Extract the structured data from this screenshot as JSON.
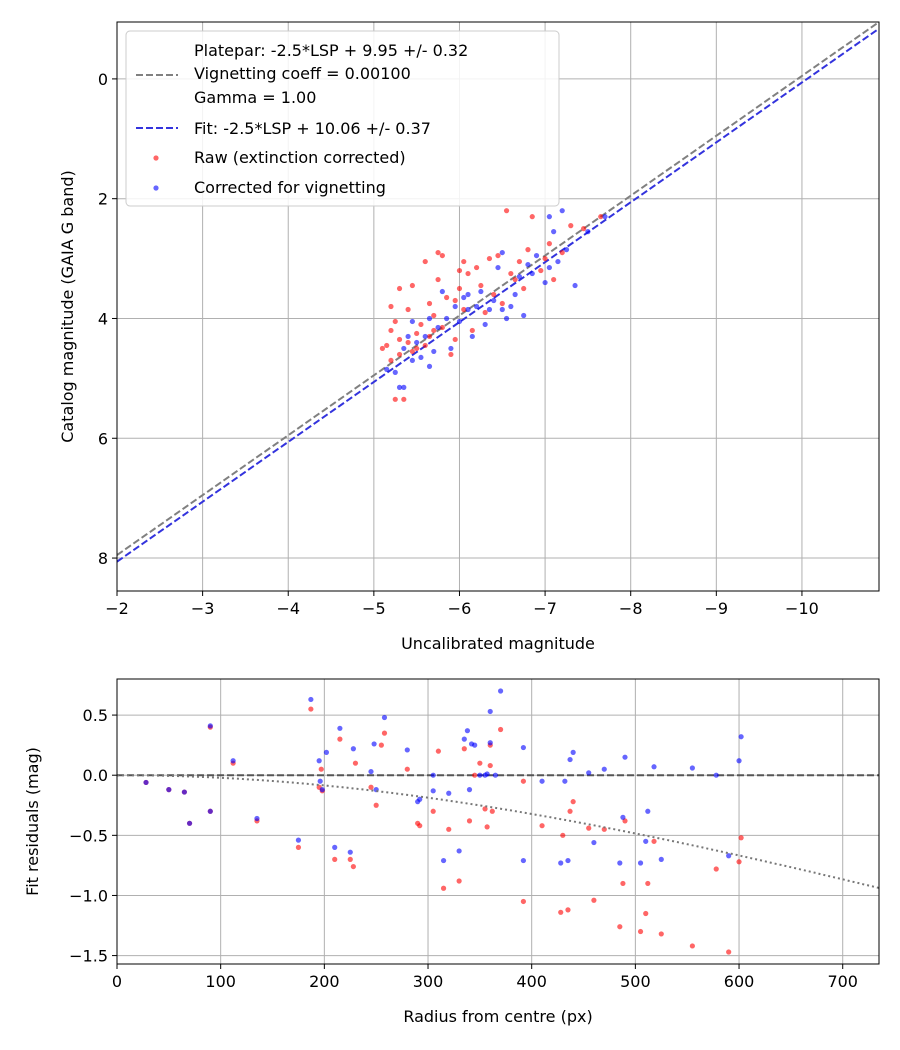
{
  "colors": {
    "raw": "#ff0000",
    "corrected": "#0000ff",
    "platepar_line": "#808080",
    "fit_line": "#3333dd",
    "grid": "#b0b0b0"
  },
  "chart_data": [
    {
      "type": "scatter",
      "xlabel": "Uncalibrated magnitude",
      "ylabel": "Catalog magnitude (GAIA G band)",
      "xlim": [
        -2,
        -10.9
      ],
      "ylim": [
        8.55,
        -0.95
      ],
      "x_inverted": true,
      "y_inverted": true,
      "grid": true,
      "legend_position": "top-left",
      "xticks": [
        -2,
        -3,
        -4,
        -5,
        -6,
        -7,
        -8,
        -9,
        -10
      ],
      "xtick_labels": [
        "−2",
        "−3",
        "−4",
        "−5",
        "−6",
        "−7",
        "−8",
        "−9",
        "−10"
      ],
      "yticks": [
        0,
        2,
        4,
        6,
        8
      ],
      "ytick_labels": [
        "0",
        "2",
        "4",
        "6",
        "8"
      ],
      "legend": [
        {
          "kind": "line",
          "style": "dashed",
          "series": "platepar",
          "lines": [
            "Platepar: -2.5*LSP + 9.95 +/- 0.32",
            "Vignetting coeff = 0.00100",
            "Gamma = 1.00"
          ]
        },
        {
          "kind": "line",
          "style": "dashed",
          "series": "fit",
          "lines": [
            "Fit: -2.5*LSP + 10.06 +/- 0.37"
          ]
        },
        {
          "kind": "marker",
          "series": "raw",
          "lines": [
            "Raw (extinction corrected)"
          ]
        },
        {
          "kind": "marker",
          "series": "corrected",
          "lines": [
            "Corrected for vignetting"
          ]
        }
      ],
      "lines": [
        {
          "name": "platepar",
          "points": [
            [
              -2,
              7.95
            ],
            [
              -10.9,
              -0.95
            ]
          ]
        },
        {
          "name": "fit",
          "points": [
            [
              -2,
              8.06
            ],
            [
              -10.9,
              -0.84
            ]
          ]
        }
      ],
      "series": [
        {
          "name": "raw",
          "points": [
            [
              -5.1,
              4.5
            ],
            [
              -5.15,
              4.45
            ],
            [
              -5.2,
              4.2
            ],
            [
              -5.2,
              3.8
            ],
            [
              -5.25,
              4.05
            ],
            [
              -5.3,
              4.35
            ],
            [
              -5.3,
              4.6
            ],
            [
              -5.25,
              5.35
            ],
            [
              -5.35,
              5.35
            ],
            [
              -5.3,
              3.5
            ],
            [
              -5.4,
              4.4
            ],
            [
              -5.4,
              3.85
            ],
            [
              -5.45,
              3.45
            ],
            [
              -5.5,
              4.25
            ],
            [
              -5.55,
              4.1
            ],
            [
              -5.5,
              4.5
            ],
            [
              -5.6,
              4.45
            ],
            [
              -5.6,
              3.05
            ],
            [
              -5.65,
              3.75
            ],
            [
              -5.7,
              4.2
            ],
            [
              -5.7,
              3.95
            ],
            [
              -5.75,
              3.35
            ],
            [
              -5.8,
              4.15
            ],
            [
              -5.8,
              2.95
            ],
            [
              -5.85,
              3.65
            ],
            [
              -5.9,
              4.6
            ],
            [
              -5.95,
              3.7
            ],
            [
              -6.0,
              3.2
            ],
            [
              -6.0,
              3.5
            ],
            [
              -6.05,
              3.85
            ],
            [
              -6.1,
              3.25
            ],
            [
              -6.15,
              4.2
            ],
            [
              -6.2,
              3.15
            ],
            [
              -6.25,
              3.45
            ],
            [
              -6.3,
              3.9
            ],
            [
              -6.35,
              3.0
            ],
            [
              -6.4,
              3.6
            ],
            [
              -6.45,
              2.95
            ],
            [
              -6.5,
              3.75
            ],
            [
              -6.55,
              2.2
            ],
            [
              -6.6,
              3.25
            ],
            [
              -6.65,
              3.35
            ],
            [
              -6.7,
              3.05
            ],
            [
              -6.75,
              3.5
            ],
            [
              -6.8,
              2.85
            ],
            [
              -6.85,
              2.3
            ],
            [
              -6.95,
              3.2
            ],
            [
              -7.0,
              3.0
            ],
            [
              -7.05,
              2.75
            ],
            [
              -7.1,
              3.35
            ],
            [
              -7.2,
              2.9
            ],
            [
              -7.3,
              2.45
            ],
            [
              -7.45,
              2.5
            ],
            [
              -7.65,
              2.3
            ],
            [
              -5.75,
              2.9
            ],
            [
              -6.05,
              3.05
            ],
            [
              -5.65,
              4.3
            ],
            [
              -5.95,
              4.35
            ],
            [
              -5.45,
              4.55
            ],
            [
              -5.2,
              4.7
            ]
          ]
        },
        {
          "name": "corrected",
          "points": [
            [
              -5.15,
              4.85
            ],
            [
              -5.3,
              5.15
            ],
            [
              -5.35,
              5.15
            ],
            [
              -5.35,
              4.5
            ],
            [
              -5.4,
              4.3
            ],
            [
              -5.45,
              4.7
            ],
            [
              -5.5,
              4.4
            ],
            [
              -5.55,
              4.65
            ],
            [
              -5.6,
              4.3
            ],
            [
              -5.65,
              4.8
            ],
            [
              -5.7,
              4.55
            ],
            [
              -5.75,
              4.15
            ],
            [
              -5.8,
              3.55
            ],
            [
              -5.85,
              4.0
            ],
            [
              -5.9,
              4.5
            ],
            [
              -6.0,
              4.05
            ],
            [
              -6.05,
              3.65
            ],
            [
              -6.1,
              3.85
            ],
            [
              -6.15,
              4.3
            ],
            [
              -6.2,
              3.8
            ],
            [
              -6.25,
              3.55
            ],
            [
              -6.3,
              4.1
            ],
            [
              -6.35,
              3.85
            ],
            [
              -6.4,
              3.7
            ],
            [
              -6.45,
              3.15
            ],
            [
              -6.5,
              2.9
            ],
            [
              -6.55,
              4.0
            ],
            [
              -6.6,
              3.8
            ],
            [
              -6.65,
              3.6
            ],
            [
              -6.7,
              3.3
            ],
            [
              -6.75,
              3.95
            ],
            [
              -6.8,
              3.1
            ],
            [
              -6.85,
              3.25
            ],
            [
              -6.9,
              2.95
            ],
            [
              -7.0,
              3.4
            ],
            [
              -7.05,
              2.3
            ],
            [
              -7.1,
              2.55
            ],
            [
              -7.15,
              3.05
            ],
            [
              -7.2,
              2.2
            ],
            [
              -7.25,
              2.85
            ],
            [
              -7.35,
              3.45
            ],
            [
              -7.5,
              2.55
            ],
            [
              -7.7,
              2.3
            ],
            [
              -5.25,
              4.9
            ],
            [
              -5.45,
              4.05
            ],
            [
              -5.65,
              4.0
            ],
            [
              -5.95,
              3.8
            ],
            [
              -6.5,
              3.85
            ],
            [
              -7.05,
              3.15
            ],
            [
              -6.1,
              3.6
            ]
          ]
        }
      ]
    },
    {
      "type": "scatter",
      "xlabel": "Radius from centre (px)",
      "ylabel": "Fit residuals (mag)",
      "xlim": [
        0,
        735
      ],
      "ylim": [
        -1.57,
        0.8
      ],
      "grid": true,
      "xticks": [
        0,
        100,
        200,
        300,
        400,
        500,
        600,
        700
      ],
      "xtick_labels": [
        "0",
        "100",
        "200",
        "300",
        "400",
        "500",
        "600",
        "700"
      ],
      "yticks": [
        0.5,
        0.0,
        -0.5,
        -1.0,
        -1.5
      ],
      "ytick_labels": [
        "0.5",
        "0.0",
        "−0.5",
        "−1.0",
        "−1.5"
      ],
      "lines": [
        {
          "name": "zero",
          "style": "dashed",
          "points": [
            [
              0,
              0
            ],
            [
              735,
              0
            ]
          ]
        },
        {
          "name": "vignetting_model",
          "style": "dotted",
          "function": "vignetting",
          "coeff": 0.001
        }
      ],
      "series": [
        {
          "name": "raw",
          "points": [
            [
              28,
              -0.06
            ],
            [
              50,
              -0.12
            ],
            [
              65,
              -0.14
            ],
            [
              70,
              -0.4
            ],
            [
              90,
              -0.3
            ],
            [
              90,
              0.4
            ],
            [
              112,
              0.1
            ],
            [
              135,
              -0.38
            ],
            [
              175,
              -0.6
            ],
            [
              187,
              0.55
            ],
            [
              195,
              -0.1
            ],
            [
              197,
              0.05
            ],
            [
              198,
              -0.13
            ],
            [
              210,
              -0.7
            ],
            [
              215,
              0.3
            ],
            [
              228,
              -0.76
            ],
            [
              230,
              0.1
            ],
            [
              245,
              -0.1
            ],
            [
              250,
              -0.25
            ],
            [
              255,
              0.25
            ],
            [
              258,
              0.35
            ],
            [
              280,
              0.05
            ],
            [
              290,
              -0.4
            ],
            [
              292,
              -0.42
            ],
            [
              305,
              -0.3
            ],
            [
              310,
              0.2
            ],
            [
              315,
              -0.94
            ],
            [
              320,
              -0.45
            ],
            [
              330,
              -0.88
            ],
            [
              335,
              0.22
            ],
            [
              340,
              -0.38
            ],
            [
              345,
              0.0
            ],
            [
              350,
              0.1
            ],
            [
              355,
              -0.28
            ],
            [
              357,
              -0.43
            ],
            [
              360,
              0.25
            ],
            [
              360,
              0.08
            ],
            [
              362,
              -0.3
            ],
            [
              370,
              0.38
            ],
            [
              392,
              -0.05
            ],
            [
              392,
              -1.05
            ],
            [
              410,
              -0.42
            ],
            [
              428,
              -1.14
            ],
            [
              430,
              -0.5
            ],
            [
              435,
              -1.12
            ],
            [
              437,
              -0.3
            ],
            [
              440,
              -0.22
            ],
            [
              455,
              -0.44
            ],
            [
              460,
              -1.04
            ],
            [
              470,
              -0.45
            ],
            [
              485,
              -1.26
            ],
            [
              488,
              -0.9
            ],
            [
              490,
              -0.38
            ],
            [
              505,
              -1.3
            ],
            [
              510,
              -1.15
            ],
            [
              512,
              -0.9
            ],
            [
              518,
              -0.55
            ],
            [
              525,
              -1.32
            ],
            [
              555,
              -1.42
            ],
            [
              578,
              -0.78
            ],
            [
              590,
              -1.47
            ],
            [
              600,
              -0.72
            ],
            [
              602,
              -0.52
            ],
            [
              225,
              -0.7
            ]
          ]
        },
        {
          "name": "corrected",
          "points": [
            [
              28,
              -0.06
            ],
            [
              50,
              -0.12
            ],
            [
              65,
              -0.14
            ],
            [
              70,
              -0.4
            ],
            [
              90,
              -0.3
            ],
            [
              90,
              0.41
            ],
            [
              112,
              0.12
            ],
            [
              135,
              -0.36
            ],
            [
              175,
              -0.54
            ],
            [
              187,
              0.63
            ],
            [
              195,
              0.12
            ],
            [
              196,
              -0.05
            ],
            [
              198,
              -0.12
            ],
            [
              202,
              0.19
            ],
            [
              210,
              -0.6
            ],
            [
              215,
              0.39
            ],
            [
              225,
              -0.64
            ],
            [
              228,
              0.22
            ],
            [
              245,
              0.03
            ],
            [
              248,
              0.26
            ],
            [
              250,
              -0.12
            ],
            [
              258,
              0.48
            ],
            [
              280,
              0.21
            ],
            [
              290,
              -0.22
            ],
            [
              292,
              -0.2
            ],
            [
              305,
              0.0
            ],
            [
              305,
              -0.13
            ],
            [
              315,
              -0.71
            ],
            [
              320,
              -0.15
            ],
            [
              330,
              -0.63
            ],
            [
              335,
              0.3
            ],
            [
              338,
              0.37
            ],
            [
              340,
              -0.12
            ],
            [
              342,
              0.26
            ],
            [
              345,
              0.25
            ],
            [
              350,
              0.0
            ],
            [
              355,
              0.0
            ],
            [
              357,
              0.01
            ],
            [
              360,
              0.53
            ],
            [
              360,
              0.27
            ],
            [
              365,
              0.0
            ],
            [
              370,
              0.7
            ],
            [
              392,
              0.23
            ],
            [
              392,
              -0.71
            ],
            [
              410,
              -0.05
            ],
            [
              428,
              -0.73
            ],
            [
              432,
              -0.05
            ],
            [
              435,
              -0.71
            ],
            [
              437,
              0.13
            ],
            [
              440,
              0.19
            ],
            [
              455,
              0.02
            ],
            [
              460,
              -0.56
            ],
            [
              470,
              0.05
            ],
            [
              485,
              -0.73
            ],
            [
              488,
              -0.35
            ],
            [
              490,
              0.15
            ],
            [
              505,
              -0.73
            ],
            [
              510,
              -0.55
            ],
            [
              512,
              -0.3
            ],
            [
              518,
              0.07
            ],
            [
              525,
              -0.7
            ],
            [
              555,
              0.06
            ],
            [
              578,
              0.0
            ],
            [
              590,
              -0.67
            ],
            [
              600,
              0.12
            ],
            [
              602,
              0.32
            ]
          ]
        }
      ]
    }
  ]
}
